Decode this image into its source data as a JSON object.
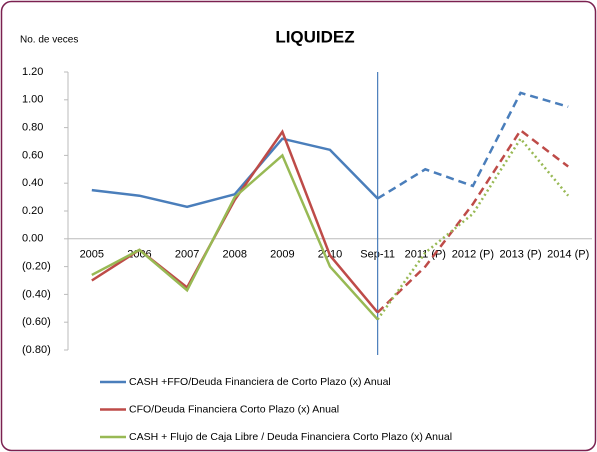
{
  "chart_data": {
    "type": "line",
    "title": "LIQUIDEZ",
    "y_axis_label": "No. de veces",
    "categories": [
      "2005",
      "2006",
      "2007",
      "2008",
      "2009",
      "2010",
      "Sep-11",
      "2011 (P)",
      "2012 (P)",
      "2013 (P)",
      "2014 (P)"
    ],
    "series": [
      {
        "name": "CASH +FFO/Deuda Financiera de Corto Plazo (x) Anual",
        "color": "#4a7ebb",
        "projection_dash": "dashed",
        "values": [
          0.35,
          0.31,
          0.23,
          0.32,
          0.72,
          0.64,
          0.29,
          0.5,
          0.38,
          1.05,
          0.95
        ]
      },
      {
        "name": "CFO/Deuda Financiera Corto Plazo (x) Anual",
        "color": "#be4b48",
        "projection_dash": "dashed",
        "values": [
          -0.3,
          -0.08,
          -0.35,
          0.28,
          0.77,
          -0.12,
          -0.53,
          -0.2,
          0.25,
          0.78,
          0.52
        ]
      },
      {
        "name": "CASH + Flujo de Caja Libre / Deuda Financiera Corto Plazo  (x) Anual",
        "color": "#98b954",
        "projection_dash": "dotted",
        "values": [
          -0.26,
          -0.08,
          -0.37,
          0.3,
          0.6,
          -0.2,
          -0.58,
          -0.1,
          0.18,
          0.72,
          0.31
        ]
      }
    ],
    "projection_start_index": 6,
    "ylim": [
      -0.8,
      1.2
    ],
    "yticks": [
      {
        "value": 1.2,
        "label": "1.20"
      },
      {
        "value": 1.0,
        "label": "1.00"
      },
      {
        "value": 0.8,
        "label": "0.80"
      },
      {
        "value": 0.6,
        "label": "0.60"
      },
      {
        "value": 0.4,
        "label": "0.40"
      },
      {
        "value": 0.2,
        "label": "0.20"
      },
      {
        "value": 0,
        "label": "0.00"
      },
      {
        "value": -0.2,
        "label": "(0.20)"
      },
      {
        "value": -0.4,
        "label": "(0.40)"
      },
      {
        "value": -0.6,
        "label": "(0.60)"
      },
      {
        "value": -0.8,
        "label": "(0.80)"
      }
    ],
    "grid": false,
    "legend": "bottom"
  }
}
